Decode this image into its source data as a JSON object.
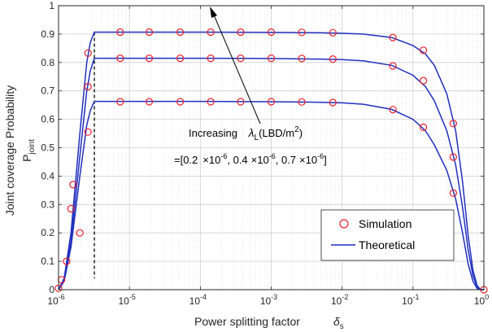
{
  "chart_data": {
    "type": "line",
    "title": "",
    "xlabel": "Power splitting factor",
    "xlabel_symbol": "δ",
    "xlabel_symbol_sub": "s",
    "ylabel_line1": "Joint coverage Probability",
    "ylabel_symbol": "P",
    "ylabel_symbol_sub": "joint",
    "x_scale": "log",
    "xlim": [
      1e-06,
      1
    ],
    "ylim": [
      0,
      1
    ],
    "grid": true,
    "x_ticks": [
      {
        "base": "10",
        "exp": "-6"
      },
      {
        "base": "10",
        "exp": "-5"
      },
      {
        "base": "10",
        "exp": "-4"
      },
      {
        "base": "10",
        "exp": "-3"
      },
      {
        "base": "10",
        "exp": "-2"
      },
      {
        "base": "10",
        "exp": "-1"
      },
      {
        "base": "10",
        "exp": "0"
      }
    ],
    "y_ticks": [
      "0",
      "0.1",
      "0.2",
      "0.3",
      "0.4",
      "0.5",
      "0.6",
      "0.7",
      "0.8",
      "0.9",
      "1"
    ],
    "legend": {
      "placement": "bottom-right",
      "entries": [
        "Simulation",
        "Theoretical"
      ]
    },
    "colors": {
      "simulation": "#e8202a",
      "theoretical": "#1f2fbf",
      "vline": "#000000"
    },
    "threshold_delta": 3.2e-06,
    "series": [
      {
        "peak": 0.663,
        "theory_x": [
          1e-06,
          1.2e-06,
          1.5e-06,
          2e-06,
          2.5e-06,
          2.8e-06,
          3.2e-06,
          1e-05,
          0.0001,
          0.001,
          0.005,
          0.01,
          0.02,
          0.05,
          0.1,
          0.15,
          0.2,
          0.3,
          0.4,
          0.5,
          0.6,
          0.7,
          0.8,
          0.9,
          1
        ],
        "theory_y": [
          0.0,
          0.03,
          0.15,
          0.4,
          0.58,
          0.63,
          0.663,
          0.663,
          0.663,
          0.662,
          0.66,
          0.658,
          0.653,
          0.635,
          0.6,
          0.56,
          0.51,
          0.42,
          0.32,
          0.2,
          0.09,
          0.03,
          0.005,
          0.0,
          0.0
        ],
        "sim_x": [
          1e-06,
          2e-06,
          2.6e-06,
          7.4e-06,
          1.9e-05,
          5.2e-05,
          0.00014,
          0.00037,
          0.001,
          0.0027,
          0.0074,
          0.052,
          0.14,
          0.37,
          1
        ],
        "sim_y": [
          0.005,
          0.2,
          0.555,
          0.662,
          0.662,
          0.662,
          0.662,
          0.662,
          0.662,
          0.661,
          0.659,
          0.634,
          0.572,
          0.34,
          0.0
        ]
      },
      {
        "peak": 0.815,
        "theory_x": [
          1e-06,
          1.2e-06,
          1.5e-06,
          2e-06,
          2.5e-06,
          2.8e-06,
          3.2e-06,
          1e-05,
          0.0001,
          0.001,
          0.005,
          0.01,
          0.02,
          0.05,
          0.1,
          0.15,
          0.2,
          0.3,
          0.4,
          0.5,
          0.6,
          0.7,
          0.8,
          0.9,
          1
        ],
        "theory_y": [
          0.0,
          0.03,
          0.17,
          0.47,
          0.7,
          0.77,
          0.815,
          0.815,
          0.815,
          0.814,
          0.812,
          0.81,
          0.806,
          0.79,
          0.755,
          0.715,
          0.665,
          0.56,
          0.44,
          0.29,
          0.14,
          0.05,
          0.01,
          0.0,
          0.0
        ],
        "sim_x": [
          1.5e-06,
          2.6e-06,
          7.4e-06,
          1.9e-05,
          5.2e-05,
          0.00014,
          0.00037,
          0.001,
          0.0027,
          0.0074,
          0.052,
          0.14,
          0.37
        ],
        "sim_y": [
          0.285,
          0.715,
          0.815,
          0.815,
          0.815,
          0.815,
          0.815,
          0.815,
          0.814,
          0.812,
          0.788,
          0.736,
          0.467
        ]
      },
      {
        "peak": 0.907,
        "theory_x": [
          1e-06,
          1.2e-06,
          1.5e-06,
          2e-06,
          2.5e-06,
          2.8e-06,
          3.2e-06,
          1e-05,
          0.0001,
          0.001,
          0.005,
          0.01,
          0.02,
          0.05,
          0.1,
          0.15,
          0.2,
          0.3,
          0.4,
          0.5,
          0.6,
          0.7,
          0.8,
          0.9,
          1
        ],
        "theory_y": [
          0.0,
          0.04,
          0.2,
          0.55,
          0.8,
          0.87,
          0.907,
          0.907,
          0.907,
          0.906,
          0.905,
          0.903,
          0.9,
          0.888,
          0.86,
          0.83,
          0.79,
          0.69,
          0.56,
          0.38,
          0.19,
          0.07,
          0.015,
          0.0,
          0.0
        ],
        "sim_x": [
          1.1e-06,
          1.3e-06,
          1.6e-06,
          2.6e-06,
          7.4e-06,
          1.9e-05,
          5.2e-05,
          0.00014,
          0.00037,
          0.001,
          0.0027,
          0.0074,
          0.052,
          0.14,
          0.37
        ],
        "sim_y": [
          0.035,
          0.1,
          0.37,
          0.833,
          0.907,
          0.907,
          0.907,
          0.907,
          0.907,
          0.907,
          0.906,
          0.905,
          0.888,
          0.843,
          0.585
        ]
      }
    ],
    "annotation": {
      "increasing_text": "Increasing",
      "lambda_symbol": "λ",
      "lambda_sub": "L",
      "unit_prefix": "(LBD/m",
      "unit_sup": "2",
      "unit_suffix": ")",
      "values_prefix": "=[0.2",
      "times1": "×10",
      "exp1": "-6",
      "mid1": ", 0.4",
      "times2": "×10",
      "exp2": "-6",
      "mid2": ", 0.7",
      "times3": "×10",
      "exp3": "-6",
      "values_suffix": "]"
    }
  }
}
